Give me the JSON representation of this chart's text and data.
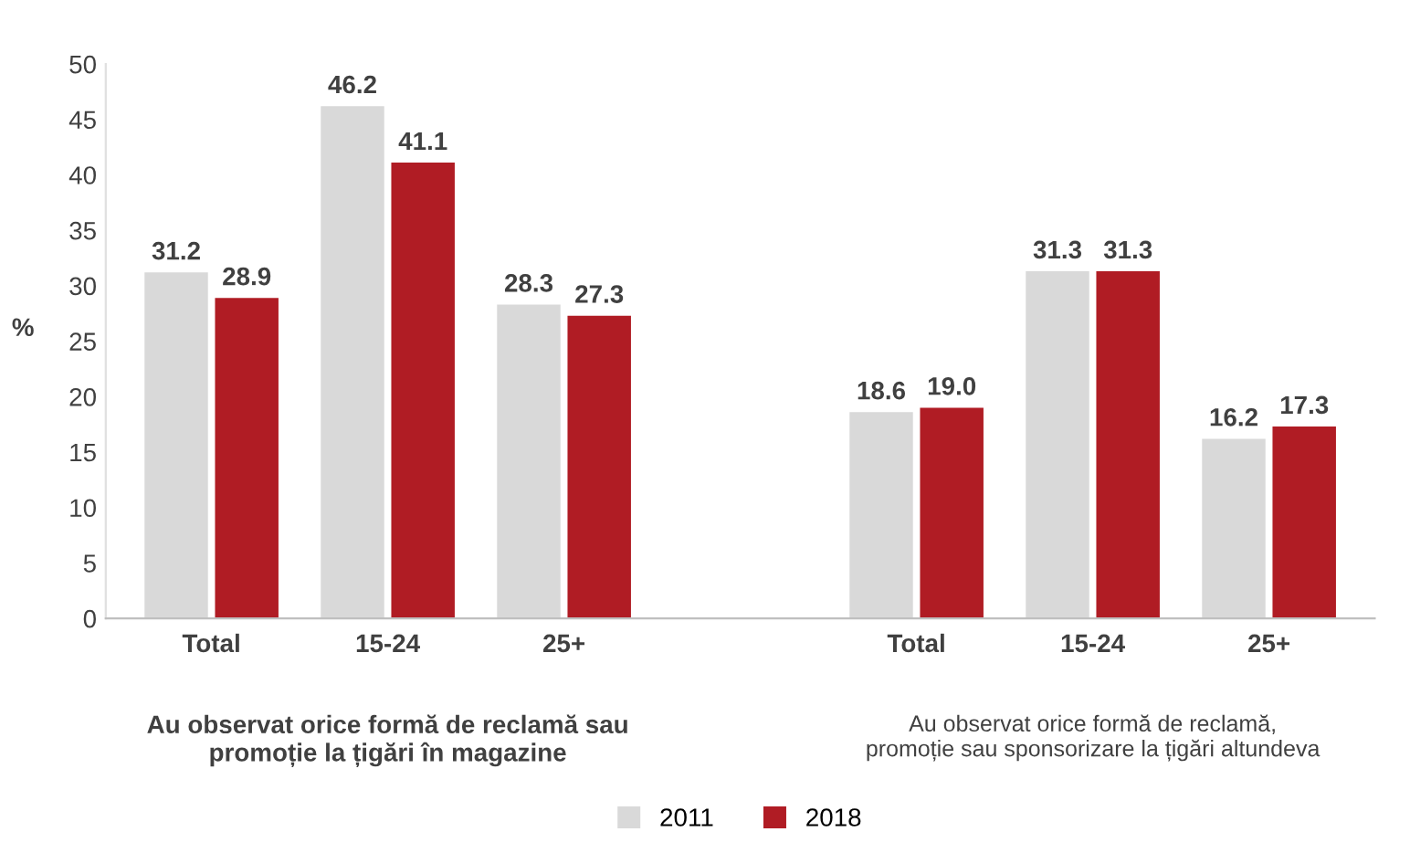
{
  "chart_data": {
    "type": "bar",
    "ylabel": "%",
    "categories": [
      "Total",
      "15-24",
      "25+",
      null,
      "Total",
      "15-24",
      "25+"
    ],
    "series": [
      {
        "name": "2011",
        "color": "#d9d9d9",
        "values": [
          31.2,
          46.2,
          28.3,
          null,
          18.6,
          31.3,
          16.2
        ],
        "value_labels": [
          "31.2",
          "46.2",
          "28.3",
          null,
          "18.6",
          "31.3",
          "16.2"
        ]
      },
      {
        "name": "2018",
        "color": "#b01c24",
        "values": [
          28.9,
          41.1,
          27.3,
          null,
          19.0,
          31.3,
          17.3
        ],
        "value_labels": [
          "28.9",
          "41.1",
          "27.3",
          null,
          "19.0",
          "31.3",
          "17.3"
        ]
      }
    ],
    "ylim": [
      0,
      50
    ],
    "yticks": [
      0,
      5,
      10,
      15,
      20,
      25,
      30,
      35,
      40,
      45,
      50
    ],
    "grid": false,
    "legend": "bottom",
    "annotations": [
      "Au observat orice formă de reclamă sau\npromoție la țigări în magazine",
      "Au observat orice formă de reclamă,\npromoție sau sponsorizare la țigări altundeva"
    ]
  }
}
